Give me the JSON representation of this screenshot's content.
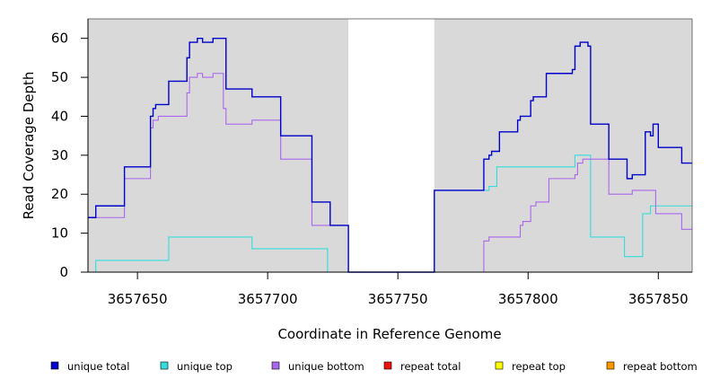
{
  "chart_data": {
    "type": "line",
    "xlabel": "Coordinate in Reference Genome",
    "ylabel": "Read Coverage Depth",
    "xlim": [
      3657631,
      3657863
    ],
    "ylim": [
      0,
      65
    ],
    "x_ticks": [
      3657650,
      3657700,
      3657750,
      3657800,
      3657850
    ],
    "y_ticks": [
      0,
      10,
      20,
      30,
      40,
      50,
      60
    ],
    "shaded_regions": [
      [
        3657631,
        3657731
      ],
      [
        3657764,
        3657863
      ]
    ],
    "shade_color": "#d9d9d9",
    "series": [
      {
        "name": "unique total",
        "color": "#0000cc",
        "steps": [
          [
            3657631,
            14
          ],
          [
            3657634,
            17
          ],
          [
            3657645,
            27
          ],
          [
            3657655,
            40
          ],
          [
            3657656,
            42
          ],
          [
            3657657,
            43
          ],
          [
            3657662,
            49
          ],
          [
            3657669,
            55
          ],
          [
            3657670,
            59
          ],
          [
            3657673,
            60
          ],
          [
            3657675,
            59
          ],
          [
            3657679,
            60
          ],
          [
            3657684,
            47
          ],
          [
            3657694,
            45
          ],
          [
            3657705,
            35
          ],
          [
            3657717,
            18
          ],
          [
            3657724,
            12
          ],
          [
            3657731,
            0
          ],
          [
            3657764,
            21
          ],
          [
            3657783,
            29
          ],
          [
            3657785,
            30
          ],
          [
            3657786,
            31
          ],
          [
            3657789,
            36
          ],
          [
            3657796,
            39
          ],
          [
            3657797,
            40
          ],
          [
            3657801,
            44
          ],
          [
            3657802,
            45
          ],
          [
            3657807,
            51
          ],
          [
            3657817,
            52
          ],
          [
            3657818,
            58
          ],
          [
            3657820,
            59
          ],
          [
            3657823,
            58
          ],
          [
            3657824,
            38
          ],
          [
            3657831,
            29
          ],
          [
            3657838,
            24
          ],
          [
            3657840,
            25
          ],
          [
            3657845,
            36
          ],
          [
            3657847,
            35
          ],
          [
            3657848,
            38
          ],
          [
            3657850,
            32
          ],
          [
            3657859,
            28
          ],
          [
            3657863,
            28
          ]
        ]
      },
      {
        "name": "unique top",
        "color": "#33dddd",
        "steps": [
          [
            3657631,
            0
          ],
          [
            3657634,
            3
          ],
          [
            3657662,
            9
          ],
          [
            3657694,
            6
          ],
          [
            3657723,
            0
          ],
          [
            3657764,
            21
          ],
          [
            3657783,
            21
          ],
          [
            3657785,
            22
          ],
          [
            3657788,
            27
          ],
          [
            3657818,
            30
          ],
          [
            3657824,
            9
          ],
          [
            3657837,
            4
          ],
          [
            3657844,
            15
          ],
          [
            3657847,
            17
          ],
          [
            3657863,
            17
          ]
        ]
      },
      {
        "name": "unique bottom",
        "color": "#aa66ee",
        "steps": [
          [
            3657631,
            14
          ],
          [
            3657645,
            24
          ],
          [
            3657655,
            37
          ],
          [
            3657656,
            39
          ],
          [
            3657658,
            40
          ],
          [
            3657669,
            46
          ],
          [
            3657670,
            50
          ],
          [
            3657673,
            51
          ],
          [
            3657675,
            50
          ],
          [
            3657679,
            51
          ],
          [
            3657683,
            42
          ],
          [
            3657684,
            38
          ],
          [
            3657694,
            39
          ],
          [
            3657705,
            29
          ],
          [
            3657717,
            12
          ],
          [
            3657731,
            0
          ],
          [
            3657783,
            8
          ],
          [
            3657785,
            9
          ],
          [
            3657797,
            12
          ],
          [
            3657798,
            13
          ],
          [
            3657801,
            17
          ],
          [
            3657803,
            18
          ],
          [
            3657808,
            24
          ],
          [
            3657818,
            25
          ],
          [
            3657819,
            28
          ],
          [
            3657821,
            29
          ],
          [
            3657831,
            20
          ],
          [
            3657840,
            21
          ],
          [
            3657849,
            15
          ],
          [
            3657859,
            11
          ],
          [
            3657863,
            11
          ]
        ]
      },
      {
        "name": "repeat total",
        "color": "#ee1111",
        "steps": [
          [
            3657631,
            0
          ],
          [
            3657863,
            0
          ]
        ]
      },
      {
        "name": "repeat top",
        "color": "#ffff00",
        "steps": [
          [
            3657631,
            0
          ],
          [
            3657863,
            0
          ]
        ]
      },
      {
        "name": "repeat bottom",
        "color": "#ff9900",
        "steps": [
          [
            3657631,
            0
          ],
          [
            3657863,
            0
          ]
        ]
      }
    ]
  }
}
